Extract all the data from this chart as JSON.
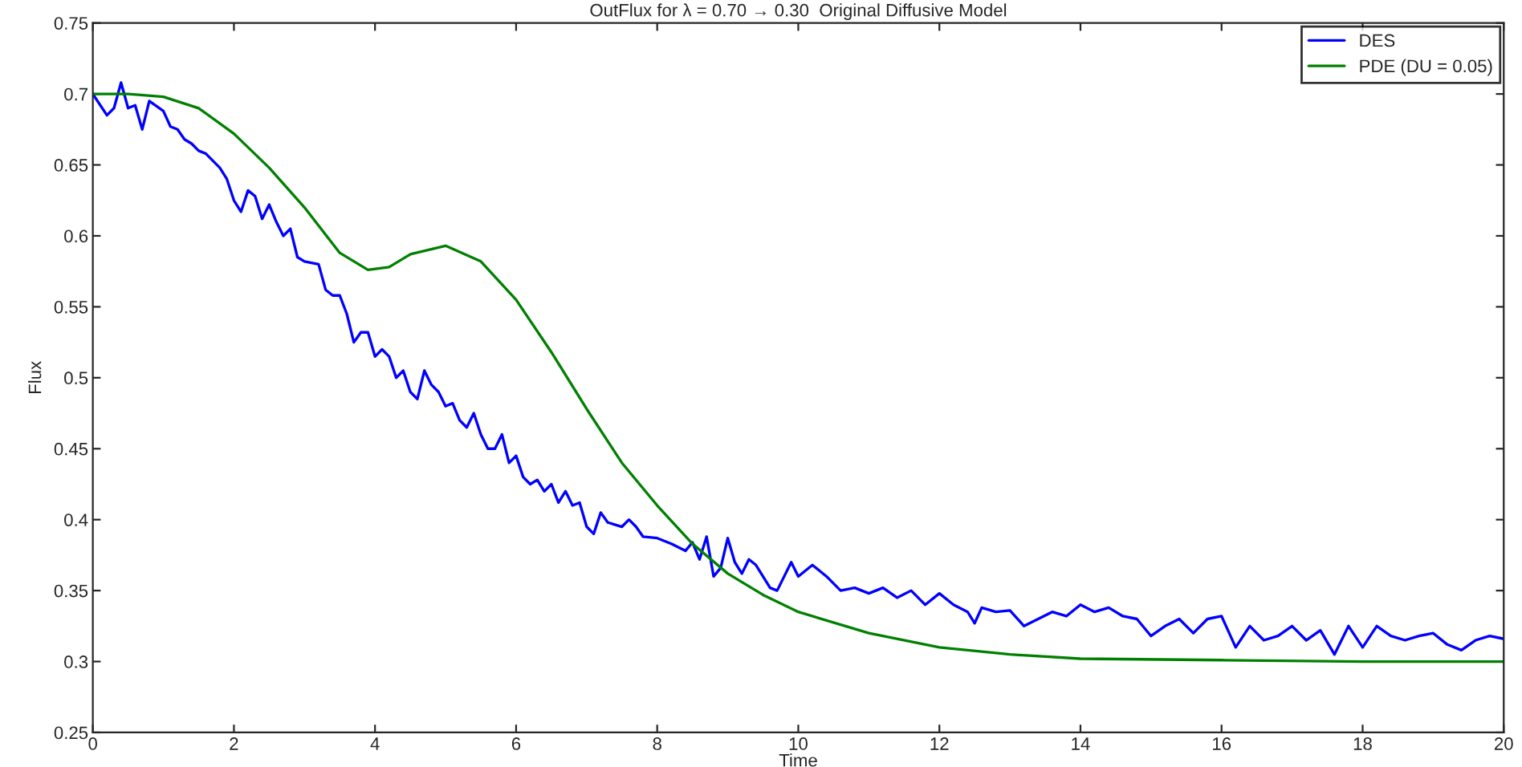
{
  "chart_data": {
    "type": "line",
    "title": "OutFlux for λ = 0.70 → 0.30  Original Diffusive Model",
    "xlabel": "Time",
    "ylabel": "Flux",
    "xlim": [
      0,
      20
    ],
    "ylim": [
      0.25,
      0.75
    ],
    "xticks": [
      0,
      2,
      4,
      6,
      8,
      10,
      12,
      14,
      16,
      18,
      20
    ],
    "yticks": [
      0.25,
      0.3,
      0.35,
      0.4,
      0.45,
      0.5,
      0.55,
      0.6,
      0.65,
      0.7,
      0.75
    ],
    "grid": false,
    "legend": "top right",
    "series": [
      {
        "name": "DES",
        "color": "#0000ff",
        "x": [
          0,
          0.2,
          0.3,
          0.4,
          0.5,
          0.6,
          0.7,
          0.8,
          1.0,
          1.1,
          1.2,
          1.3,
          1.4,
          1.5,
          1.6,
          1.8,
          1.9,
          2.0,
          2.1,
          2.2,
          2.3,
          2.4,
          2.5,
          2.6,
          2.7,
          2.8,
          2.9,
          3.0,
          3.2,
          3.3,
          3.4,
          3.5,
          3.6,
          3.7,
          3.8,
          3.9,
          4.0,
          4.1,
          4.2,
          4.3,
          4.4,
          4.5,
          4.6,
          4.7,
          4.8,
          4.9,
          5.0,
          5.1,
          5.2,
          5.3,
          5.4,
          5.5,
          5.6,
          5.7,
          5.8,
          5.9,
          6.0,
          6.1,
          6.2,
          6.3,
          6.4,
          6.5,
          6.6,
          6.7,
          6.8,
          6.9,
          7.0,
          7.1,
          7.2,
          7.3,
          7.5,
          7.6,
          7.7,
          7.8,
          8.0,
          8.2,
          8.4,
          8.5,
          8.6,
          8.7,
          8.8,
          8.9,
          9.0,
          9.1,
          9.2,
          9.3,
          9.4,
          9.6,
          9.7,
          9.9,
          10.0,
          10.2,
          10.4,
          10.6,
          10.8,
          11.0,
          11.2,
          11.4,
          11.6,
          11.8,
          12.0,
          12.2,
          12.4,
          12.5,
          12.6,
          12.8,
          13.0,
          13.2,
          13.4,
          13.6,
          13.8,
          14.0,
          14.2,
          14.4,
          14.6,
          14.8,
          15.0,
          15.2,
          15.4,
          15.6,
          15.8,
          16.0,
          16.2,
          16.4,
          16.6,
          16.8,
          17.0,
          17.2,
          17.4,
          17.6,
          17.8,
          18.0,
          18.2,
          18.4,
          18.6,
          18.8,
          19.0,
          19.2,
          19.4,
          19.6,
          19.8,
          20.0
        ],
        "values": [
          0.7,
          0.685,
          0.69,
          0.708,
          0.69,
          0.692,
          0.675,
          0.695,
          0.688,
          0.677,
          0.675,
          0.668,
          0.665,
          0.66,
          0.658,
          0.648,
          0.64,
          0.625,
          0.617,
          0.632,
          0.628,
          0.612,
          0.622,
          0.61,
          0.6,
          0.605,
          0.585,
          0.582,
          0.58,
          0.562,
          0.558,
          0.558,
          0.545,
          0.525,
          0.532,
          0.532,
          0.515,
          0.52,
          0.515,
          0.5,
          0.505,
          0.49,
          0.485,
          0.505,
          0.495,
          0.49,
          0.48,
          0.482,
          0.47,
          0.465,
          0.475,
          0.46,
          0.45,
          0.45,
          0.46,
          0.44,
          0.445,
          0.43,
          0.425,
          0.428,
          0.42,
          0.425,
          0.412,
          0.42,
          0.41,
          0.412,
          0.395,
          0.39,
          0.405,
          0.398,
          0.395,
          0.4,
          0.395,
          0.388,
          0.387,
          0.383,
          0.378,
          0.384,
          0.372,
          0.388,
          0.36,
          0.366,
          0.387,
          0.37,
          0.362,
          0.372,
          0.368,
          0.352,
          0.35,
          0.37,
          0.36,
          0.368,
          0.36,
          0.35,
          0.352,
          0.348,
          0.352,
          0.345,
          0.35,
          0.34,
          0.348,
          0.34,
          0.335,
          0.327,
          0.338,
          0.335,
          0.336,
          0.325,
          0.33,
          0.335,
          0.332,
          0.34,
          0.335,
          0.338,
          0.332,
          0.33,
          0.318,
          0.325,
          0.33,
          0.32,
          0.33,
          0.332,
          0.31,
          0.325,
          0.315,
          0.318,
          0.325,
          0.315,
          0.322,
          0.305,
          0.325,
          0.31,
          0.325,
          0.318,
          0.315,
          0.318,
          0.32,
          0.312,
          0.308,
          0.315,
          0.318,
          0.316
        ]
      },
      {
        "name": "PDE (DU = 0.05)",
        "color": "#008000",
        "x": [
          0,
          0.5,
          1,
          1.5,
          2,
          2.5,
          3,
          3.5,
          3.9,
          4.2,
          4.5,
          5,
          5.5,
          6,
          6.5,
          7,
          7.5,
          8,
          8.5,
          9,
          9.5,
          10,
          11,
          12,
          13,
          14,
          16,
          18,
          20
        ],
        "values": [
          0.7,
          0.7,
          0.698,
          0.69,
          0.672,
          0.648,
          0.62,
          0.588,
          0.576,
          0.578,
          0.587,
          0.593,
          0.582,
          0.555,
          0.518,
          0.478,
          0.44,
          0.41,
          0.383,
          0.362,
          0.347,
          0.335,
          0.32,
          0.31,
          0.305,
          0.302,
          0.301,
          0.3,
          0.3
        ]
      }
    ]
  }
}
